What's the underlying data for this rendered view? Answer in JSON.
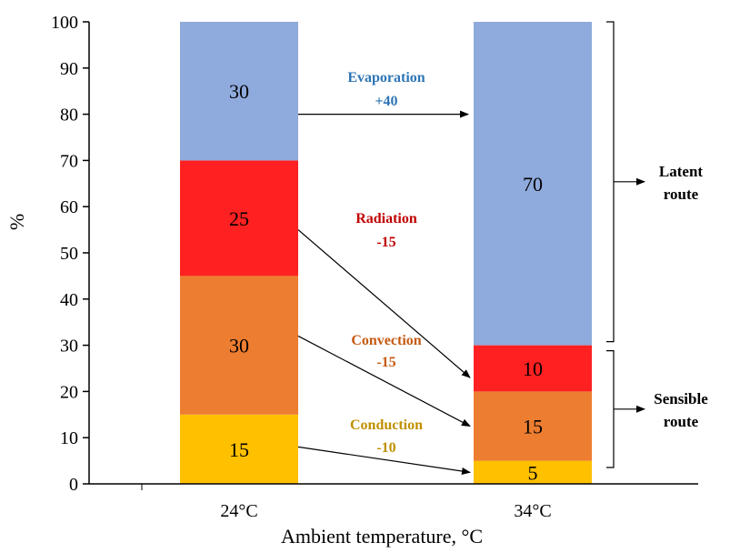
{
  "chart_data": {
    "type": "bar",
    "stacked": true,
    "categories": [
      "24°C",
      "34°C"
    ],
    "series": [
      {
        "key": "conduction",
        "color": "#ffc000",
        "values": [
          15,
          5
        ]
      },
      {
        "key": "convection",
        "color": "#ed7d31",
        "values": [
          30,
          15
        ]
      },
      {
        "key": "radiation",
        "color": "#ff2121",
        "values": [
          25,
          10
        ]
      },
      {
        "key": "evaporation",
        "color": "#8faadc",
        "values": [
          30,
          70
        ]
      }
    ],
    "xlabel": "Ambient temperature, °C",
    "ylabel": "%",
    "ylim": [
      0,
      100
    ],
    "yticks": [
      0,
      10,
      20,
      30,
      40,
      50,
      60,
      70,
      80,
      90,
      100
    ],
    "grid": false,
    "annotations": [
      {
        "key": "evaporation",
        "name": "Evaporation",
        "change": "+40",
        "color": "#2e75b6"
      },
      {
        "key": "radiation",
        "name": "Radiation",
        "change": "-15",
        "color": "#c00000"
      },
      {
        "key": "convection",
        "name": "Convection",
        "change": "-15",
        "color": "#c55a11"
      },
      {
        "key": "conduction",
        "name": "Conduction",
        "change": "-10",
        "color": "#bf9000"
      }
    ],
    "routes": [
      {
        "key": "latent",
        "line1": "Latent",
        "line2": "route",
        "range": [
          30,
          100
        ]
      },
      {
        "key": "sensible",
        "line1": "Sensible",
        "line2": "route",
        "range": [
          0,
          30
        ]
      }
    ]
  }
}
